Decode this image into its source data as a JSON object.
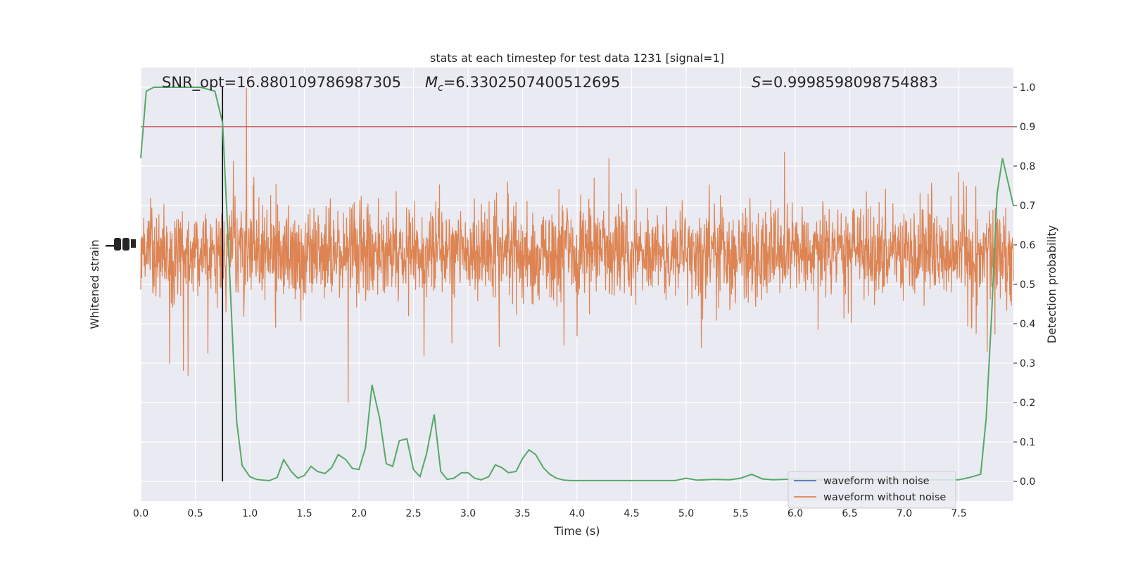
{
  "chart_data": {
    "type": "line",
    "title": "stats at each timestep for test data 1231 [signal=1]",
    "xlabel": "Time (s)",
    "ylabel_left": "Whitened strain",
    "ylabel_right": "Detection probability",
    "xlim": [
      0,
      8
    ],
    "ylim_right": [
      -0.05,
      1.05
    ],
    "x_ticks": [
      "0.0",
      "0.5",
      "1.0",
      "1.5",
      "2.0",
      "2.5",
      "3.0",
      "3.5",
      "4.0",
      "4.5",
      "5.0",
      "5.5",
      "6.0",
      "6.5",
      "7.0",
      "7.5"
    ],
    "y_ticks_right": [
      "0.0",
      "0.1",
      "0.2",
      "0.3",
      "0.4",
      "0.5",
      "0.6",
      "0.7",
      "0.8",
      "0.9",
      "1.0"
    ],
    "grid": true,
    "legend_position": "bottom-right",
    "annotations": {
      "snr": "SNR_opt=16.880109786987305",
      "mc_label": "M",
      "mc_sub": "c",
      "mc_value": "=6.3302507400512695",
      "s_label": "S",
      "s_value": "=0.9998598098754883"
    },
    "threshold": {
      "value": 0.9,
      "color": "#c44e52"
    },
    "event_time": 0.75,
    "series": [
      {
        "name": "waveform with noise",
        "color": "#4c72b0",
        "type": "line",
        "approx_range": [
          0.33,
          0.83
        ]
      },
      {
        "name": "waveform without noise",
        "color": "#dd8452",
        "type": "line"
      },
      {
        "color": "#55a868",
        "type": "line",
        "x": [
          0.0,
          0.05,
          0.12,
          0.25,
          0.4,
          0.55,
          0.68,
          0.75,
          0.8,
          0.85,
          0.88,
          0.93,
          1.0,
          1.06,
          1.12,
          1.18,
          1.25,
          1.31,
          1.38,
          1.44,
          1.5,
          1.56,
          1.62,
          1.69,
          1.75,
          1.81,
          1.88,
          1.94,
          2.0,
          2.06,
          2.12,
          2.19,
          2.25,
          2.31,
          2.37,
          2.44,
          2.5,
          2.56,
          2.62,
          2.69,
          2.75,
          2.81,
          2.87,
          2.94,
          3.0,
          3.06,
          3.12,
          3.19,
          3.25,
          3.31,
          3.37,
          3.44,
          3.5,
          3.56,
          3.62,
          3.69,
          3.75,
          3.81,
          3.88,
          3.94,
          4.0,
          4.25,
          4.5,
          4.75,
          4.9,
          5.0,
          5.1,
          5.25,
          5.4,
          5.5,
          5.6,
          5.7,
          5.8,
          6.0,
          6.25,
          6.5,
          6.75,
          7.0,
          7.25,
          7.5,
          7.6,
          7.7,
          7.75,
          7.8,
          7.85,
          7.9,
          8.0
        ],
        "y": [
          0.82,
          0.99,
          1.0,
          1.0,
          1.0,
          1.0,
          0.99,
          0.91,
          0.62,
          0.31,
          0.15,
          0.04,
          0.012,
          0.005,
          0.003,
          0.002,
          0.01,
          0.055,
          0.025,
          0.008,
          0.015,
          0.038,
          0.025,
          0.02,
          0.035,
          0.068,
          0.055,
          0.033,
          0.03,
          0.085,
          0.245,
          0.16,
          0.045,
          0.038,
          0.103,
          0.108,
          0.03,
          0.012,
          0.07,
          0.17,
          0.025,
          0.005,
          0.008,
          0.022,
          0.022,
          0.008,
          0.004,
          0.012,
          0.042,
          0.035,
          0.022,
          0.025,
          0.058,
          0.08,
          0.068,
          0.035,
          0.018,
          0.008,
          0.003,
          0.002,
          0.002,
          0.002,
          0.002,
          0.002,
          0.002,
          0.008,
          0.003,
          0.005,
          0.004,
          0.008,
          0.018,
          0.006,
          0.004,
          0.006,
          0.004,
          0.004,
          0.004,
          0.004,
          0.004,
          0.004,
          0.01,
          0.018,
          0.16,
          0.42,
          0.73,
          0.82,
          0.7
        ]
      }
    ]
  }
}
